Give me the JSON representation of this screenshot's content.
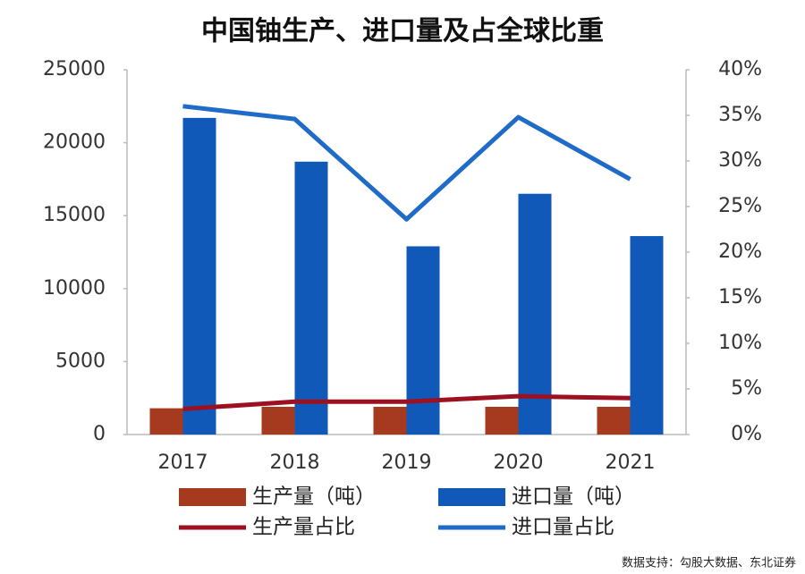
{
  "chart_data": {
    "type": "bar",
    "title": "中国铀生产、进口量及占全球比重",
    "categories": [
      "2017",
      "2018",
      "2019",
      "2020",
      "2021"
    ],
    "series": [
      {
        "name": "生产量（吨）",
        "color": "#a63a1f",
        "type": "bar",
        "values": [
          1800,
          1900,
          1900,
          1900,
          1900
        ]
      },
      {
        "name": "进口量（吨）",
        "color": "#1059b8",
        "type": "bar",
        "values": [
          21700,
          18700,
          12900,
          16500,
          13600
        ]
      },
      {
        "name": "生产量占比",
        "color": "#9c1020",
        "type": "line",
        "axis": "y2",
        "values": [
          2.8,
          3.6,
          3.6,
          4.2,
          4.0
        ]
      },
      {
        "name": "进口量占比",
        "color": "#1f6bc8",
        "type": "line",
        "axis": "y2",
        "values": [
          36.0,
          34.6,
          23.6,
          34.8,
          28.0
        ]
      }
    ],
    "ylim": [
      0,
      25000
    ],
    "yticks": [
      0,
      5000,
      10000,
      15000,
      20000,
      25000
    ],
    "y2lim": [
      0,
      40
    ],
    "y2ticks": [
      {
        "value": 0,
        "label": "0%"
      },
      {
        "value": 5,
        "label": "5%"
      },
      {
        "value": 10,
        "label": "10%"
      },
      {
        "value": 15,
        "label": "15%"
      },
      {
        "value": 20,
        "label": "20%"
      },
      {
        "value": 25,
        "label": "25%"
      },
      {
        "value": 30,
        "label": "30%"
      },
      {
        "value": 35,
        "label": "35%"
      },
      {
        "value": 40,
        "label": "40%"
      }
    ],
    "grid": false,
    "source": "数据支持：勾股大数据、东北证券"
  }
}
